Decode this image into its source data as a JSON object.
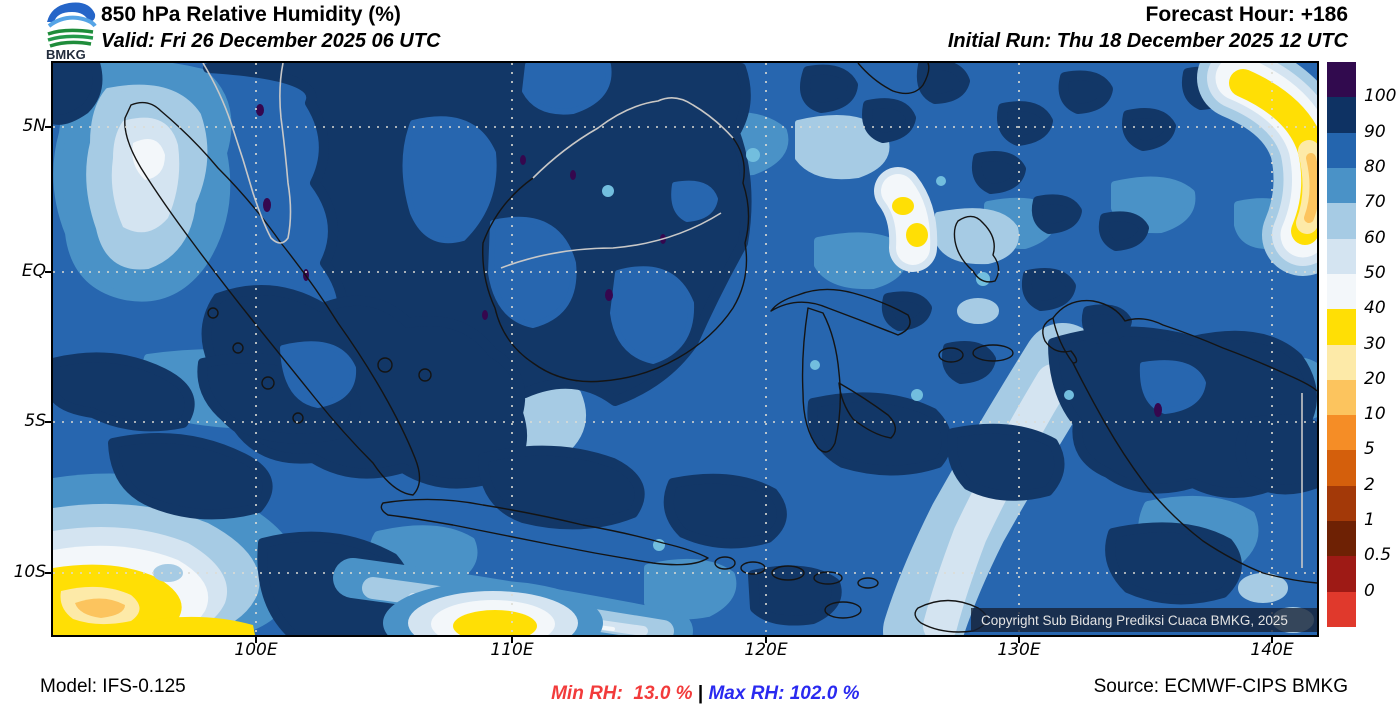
{
  "header": {
    "logo_text": "BMKG",
    "title": "850 hPa Relative Humidity (%)",
    "valid": "Valid: Fri 26 December 2025 06 UTC",
    "forecast_hour": "Forecast Hour: +186",
    "initial_run": "Initial Run: Thu 18 December 2025 12 UTC"
  },
  "map": {
    "copyright": "Copyright Sub Bidang Prediksi Cuaca BMKG, 2025",
    "y_axis": [
      "5N",
      "EQ",
      "5S",
      "10S"
    ],
    "x_axis": [
      "100E",
      "110E",
      "120E",
      "130E",
      "140E"
    ]
  },
  "colorbar": {
    "labels": [
      "100",
      "90",
      "80",
      "70",
      "60",
      "50",
      "40",
      "30",
      "20",
      "10",
      "5",
      "2",
      "1",
      "0.5",
      "0"
    ],
    "colors": [
      "#310a4e",
      "#0e3263",
      "#2465ae",
      "#4a92c7",
      "#a6cbe4",
      "#d4e4f1",
      "#f3f7fa",
      "#ffdf05",
      "#fdeaa8",
      "#fcc45e",
      "#f58d26",
      "#d45f0c",
      "#a33908",
      "#6e2104",
      "#9e1a15",
      "#e0392c"
    ]
  },
  "footer": {
    "model": "Model: IFS-0.125",
    "min_rh": "Min RH:  13.0 %",
    "separator": " | ",
    "max_rh": "Max RH: 102.0 %",
    "source": "Source: ECMWF-CIPS BMKG"
  }
}
